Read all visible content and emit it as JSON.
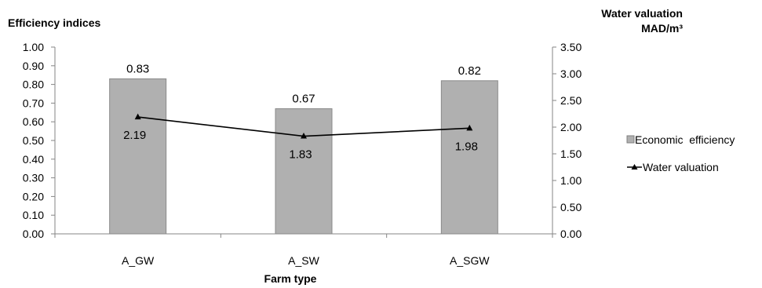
{
  "chart_data": {
    "type": "bar",
    "categories": [
      "A_GW",
      "A_SW",
      "A_SGW"
    ],
    "xlabel": "Farm type",
    "ylabel_left": "Efficiency indices",
    "ylabel_right": [
      "Water valuation",
      "MAD/m³"
    ],
    "ylim_left": [
      0,
      1
    ],
    "yticks_left": [
      "0.00",
      "0.10",
      "0.20",
      "0.30",
      "0.40",
      "0.50",
      "0.60",
      "0.70",
      "0.80",
      "0.90",
      "1.00"
    ],
    "ylim_right": [
      0,
      3.5
    ],
    "yticks_right": [
      "0.00",
      "0.50",
      "1.00",
      "1.50",
      "2.00",
      "2.50",
      "3.00",
      "3.50"
    ],
    "series": [
      {
        "name": "Economic  efficiency",
        "type": "bar",
        "axis": "left",
        "values": [
          0.83,
          0.67,
          0.82
        ],
        "labels": [
          "0.83",
          "0.67",
          "0.82"
        ],
        "color": "#b0b0b0"
      },
      {
        "name": "Water valuation",
        "type": "line",
        "axis": "right",
        "values": [
          2.19,
          1.83,
          1.98
        ],
        "labels": [
          "2.19",
          "1.83",
          "1.98"
        ],
        "color": "#000000",
        "marker": "triangle"
      }
    ],
    "grid": false,
    "legend": "right"
  }
}
